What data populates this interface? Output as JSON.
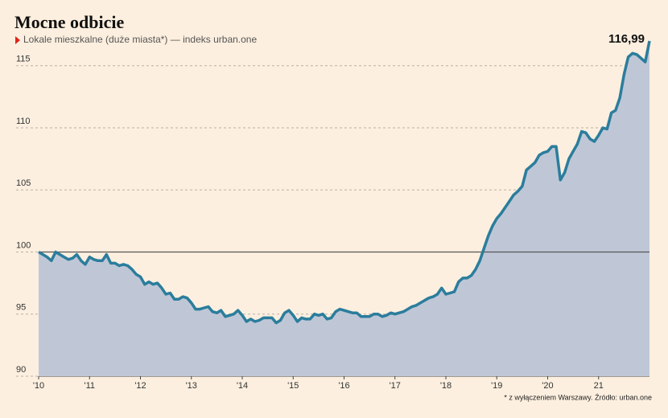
{
  "chart_data": {
    "type": "area",
    "title": "Mocne odbicie",
    "subtitle": "Lokale mieszkalne (duże miasta*) — indeks urban.one",
    "footnote": "* z wyłączeniem Warszawy. Źródło: urban.one",
    "color": "#2b7d9c",
    "fill": "#bfc7d7",
    "reference_line": 100,
    "end_label": "116,99",
    "ylim": [
      90,
      117.7
    ],
    "yticks": [
      90,
      95,
      100,
      105,
      110,
      115
    ],
    "grid": true,
    "categories": [
      "'10",
      null,
      null,
      null,
      null,
      null,
      null,
      null,
      null,
      null,
      null,
      null,
      "'11",
      null,
      null,
      null,
      null,
      null,
      null,
      null,
      null,
      null,
      null,
      null,
      "'12",
      null,
      null,
      null,
      null,
      null,
      null,
      null,
      null,
      null,
      null,
      null,
      "'13",
      null,
      null,
      null,
      null,
      null,
      null,
      null,
      null,
      null,
      null,
      null,
      "'14",
      null,
      null,
      null,
      null,
      null,
      null,
      null,
      null,
      null,
      null,
      null,
      "'15",
      null,
      null,
      null,
      null,
      null,
      null,
      null,
      null,
      null,
      null,
      null,
      "'16",
      null,
      null,
      null,
      null,
      null,
      null,
      null,
      null,
      null,
      null,
      null,
      "'17",
      null,
      null,
      null,
      null,
      null,
      null,
      null,
      null,
      null,
      null,
      null,
      "'18",
      null,
      null,
      null,
      null,
      null,
      null,
      null,
      null,
      null,
      null,
      null,
      "'19",
      null,
      null,
      null,
      null,
      null,
      null,
      null,
      null,
      null,
      null,
      null,
      "'20",
      null,
      null,
      null,
      null,
      null,
      null,
      null,
      null,
      null,
      null,
      null,
      "21",
      null,
      null,
      null,
      null,
      null,
      null,
      null,
      null,
      null,
      null,
      null,
      null
    ],
    "values": [
      100,
      99.8,
      99.6,
      99.3,
      100.0,
      99.8,
      99.6,
      99.4,
      99.5,
      99.8,
      99.3,
      99.0,
      99.6,
      99.4,
      99.3,
      99.3,
      99.8,
      99.1,
      99.1,
      98.9,
      99.0,
      98.9,
      98.6,
      98.2,
      98.0,
      97.4,
      97.6,
      97.4,
      97.5,
      97.1,
      96.6,
      96.7,
      96.2,
      96.2,
      96.4,
      96.3,
      95.9,
      95.4,
      95.4,
      95.5,
      95.6,
      95.2,
      95.1,
      95.3,
      94.8,
      94.9,
      95.0,
      95.3,
      94.9,
      94.4,
      94.6,
      94.4,
      94.5,
      94.7,
      94.7,
      94.7,
      94.3,
      94.5,
      95.1,
      95.3,
      94.9,
      94.4,
      94.7,
      94.6,
      94.6,
      95.0,
      94.9,
      95.0,
      94.6,
      94.7,
      95.2,
      95.4,
      95.3,
      95.2,
      95.1,
      95.1,
      94.8,
      94.8,
      94.8,
      95.0,
      95.0,
      94.8,
      94.9,
      95.1,
      95.0,
      95.1,
      95.2,
      95.4,
      95.6,
      95.7,
      95.9,
      96.1,
      96.3,
      96.4,
      96.6,
      97.1,
      96.6,
      96.7,
      96.8,
      97.6,
      97.9,
      97.9,
      98.1,
      98.6,
      99.3,
      100.3,
      101.3,
      102.1,
      102.7,
      103.1,
      103.6,
      104.1,
      104.6,
      104.9,
      105.3,
      106.6,
      106.9,
      107.2,
      107.8,
      108.0,
      108.1,
      108.5,
      108.5,
      105.8,
      106.4,
      107.5,
      108.1,
      108.7,
      109.7,
      109.6,
      109.1,
      108.9,
      109.4,
      110.0,
      109.9,
      111.2,
      111.4,
      112.4,
      114.3,
      115.7,
      116.0,
      115.9,
      115.6,
      115.3,
      116.99
    ]
  }
}
